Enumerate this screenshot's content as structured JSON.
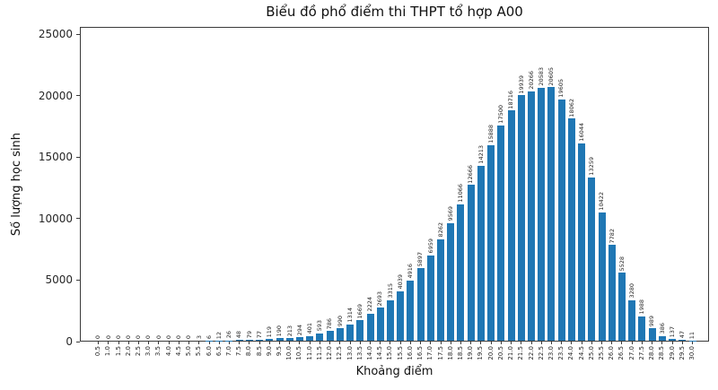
{
  "chart_data": {
    "type": "bar",
    "title": "Biểu đồ phổ điểm thi THPT tổ hợp A00",
    "xlabel": "Khoảng điểm",
    "ylabel": "Số lượng học sinh",
    "bar_color": "#1f77b4",
    "grid": false,
    "legend": "none",
    "ylim": [
      0,
      25000
    ],
    "yticks": [
      0,
      5000,
      10000,
      15000,
      20000,
      25000
    ],
    "value_labels_shown": true,
    "categories": [
      "0.5",
      "1.0",
      "1.5",
      "2.0",
      "2.5",
      "3.0",
      "3.5",
      "4.0",
      "4.5",
      "5.0",
      "5.5",
      "6.0",
      "6.5",
      "7.0",
      "7.5",
      "8.0",
      "8.5",
      "9.0",
      "9.5",
      "10.0",
      "10.5",
      "11.0",
      "11.5",
      "12.0",
      "12.5",
      "13.0",
      "13.5",
      "14.0",
      "14.5",
      "15.0",
      "15.5",
      "16.0",
      "16.5",
      "17.0",
      "17.5",
      "18.0",
      "18.5",
      "19.0",
      "19.5",
      "20.0",
      "20.5",
      "21.0",
      "21.5",
      "22.0",
      "22.5",
      "23.0",
      "23.5",
      "24.0",
      "24.5",
      "25.0",
      "25.5",
      "26.0",
      "26.5",
      "27.0",
      "27.5",
      "28.0",
      "28.5",
      "29.0",
      "29.5",
      "30.0"
    ],
    "values": [
      0,
      0,
      0,
      0,
      0,
      0,
      0,
      0,
      0,
      0,
      3,
      6,
      12,
      26,
      48,
      79,
      77,
      119,
      190,
      213,
      294,
      401,
      593,
      786,
      990,
      1314,
      1669,
      2224,
      2693,
      3315,
      4039,
      4916,
      5897,
      6959,
      8262,
      9569,
      11066,
      12666,
      14213,
      15888,
      17500,
      18716,
      19939,
      20266,
      20583,
      20605,
      19605,
      18062,
      16044,
      13259,
      10422,
      7782,
      5528,
      3280,
      1988,
      989,
      386,
      137,
      47,
      11
    ]
  }
}
